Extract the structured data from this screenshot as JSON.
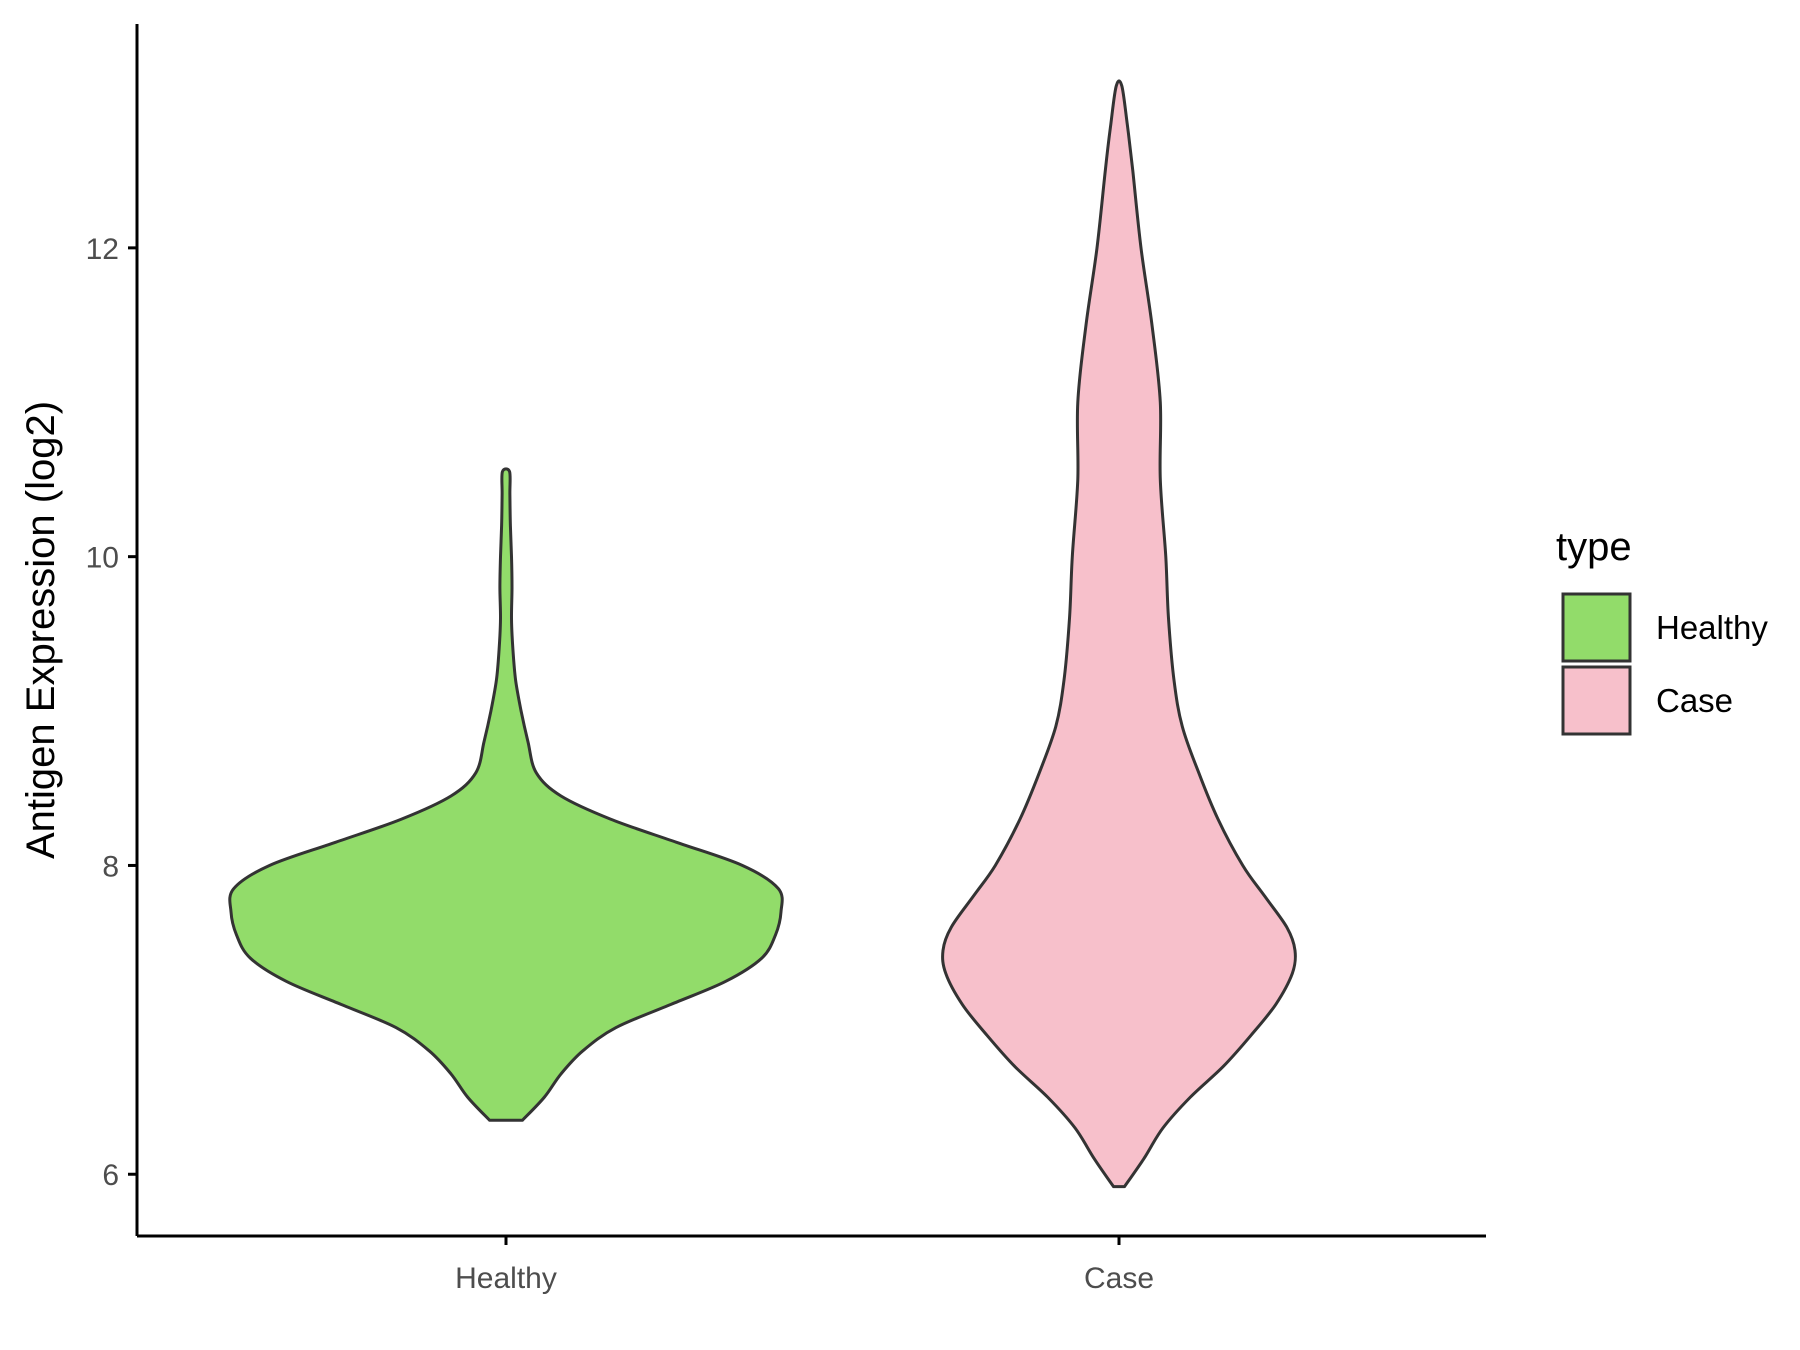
{
  "chart_data": {
    "type": "violin",
    "ylabel": "Antigen Expression (log2)",
    "xlabel": "",
    "categories": [
      "Healthy",
      "Case"
    ],
    "yticks": [
      6,
      8,
      10,
      12
    ],
    "ylim": [
      5.6,
      13.45
    ],
    "grid": false,
    "legend": {
      "title": "type",
      "position": "right",
      "entries": [
        {
          "label": "Healthy",
          "color": "#92dc6a"
        },
        {
          "label": "Case",
          "color": "#f7c0cb"
        }
      ]
    },
    "series": [
      {
        "name": "Healthy",
        "color": "#92dc6a",
        "min": 6.35,
        "max": 10.55,
        "density_profile": [
          [
            6.35,
            0.06
          ],
          [
            6.5,
            0.14
          ],
          [
            6.65,
            0.2
          ],
          [
            6.8,
            0.28
          ],
          [
            6.95,
            0.4
          ],
          [
            7.1,
            0.6
          ],
          [
            7.25,
            0.8
          ],
          [
            7.4,
            0.93
          ],
          [
            7.55,
            0.98
          ],
          [
            7.7,
            1.0
          ],
          [
            7.85,
            0.99
          ],
          [
            8.0,
            0.86
          ],
          [
            8.15,
            0.62
          ],
          [
            8.3,
            0.38
          ],
          [
            8.45,
            0.2
          ],
          [
            8.6,
            0.11
          ],
          [
            8.8,
            0.08
          ],
          [
            9.0,
            0.055
          ],
          [
            9.2,
            0.035
          ],
          [
            9.4,
            0.025
          ],
          [
            9.6,
            0.02
          ],
          [
            9.8,
            0.022
          ],
          [
            10.0,
            0.02
          ],
          [
            10.2,
            0.016
          ],
          [
            10.4,
            0.014
          ],
          [
            10.55,
            0.013
          ]
        ]
      },
      {
        "name": "Case",
        "color": "#f7c0cb",
        "min": 5.92,
        "max": 13.05,
        "density_profile": [
          [
            5.92,
            0.02
          ],
          [
            6.1,
            0.09
          ],
          [
            6.3,
            0.16
          ],
          [
            6.5,
            0.26
          ],
          [
            6.7,
            0.38
          ],
          [
            6.9,
            0.48
          ],
          [
            7.1,
            0.57
          ],
          [
            7.3,
            0.63
          ],
          [
            7.45,
            0.64
          ],
          [
            7.6,
            0.61
          ],
          [
            7.8,
            0.53
          ],
          [
            8.0,
            0.45
          ],
          [
            8.3,
            0.36
          ],
          [
            8.6,
            0.29
          ],
          [
            8.9,
            0.23
          ],
          [
            9.2,
            0.2
          ],
          [
            9.6,
            0.18
          ],
          [
            10.0,
            0.17
          ],
          [
            10.5,
            0.15
          ],
          [
            11.0,
            0.15
          ],
          [
            11.5,
            0.12
          ],
          [
            12.0,
            0.08
          ],
          [
            12.5,
            0.05
          ],
          [
            12.8,
            0.03
          ],
          [
            13.05,
            0.01
          ]
        ]
      }
    ]
  }
}
